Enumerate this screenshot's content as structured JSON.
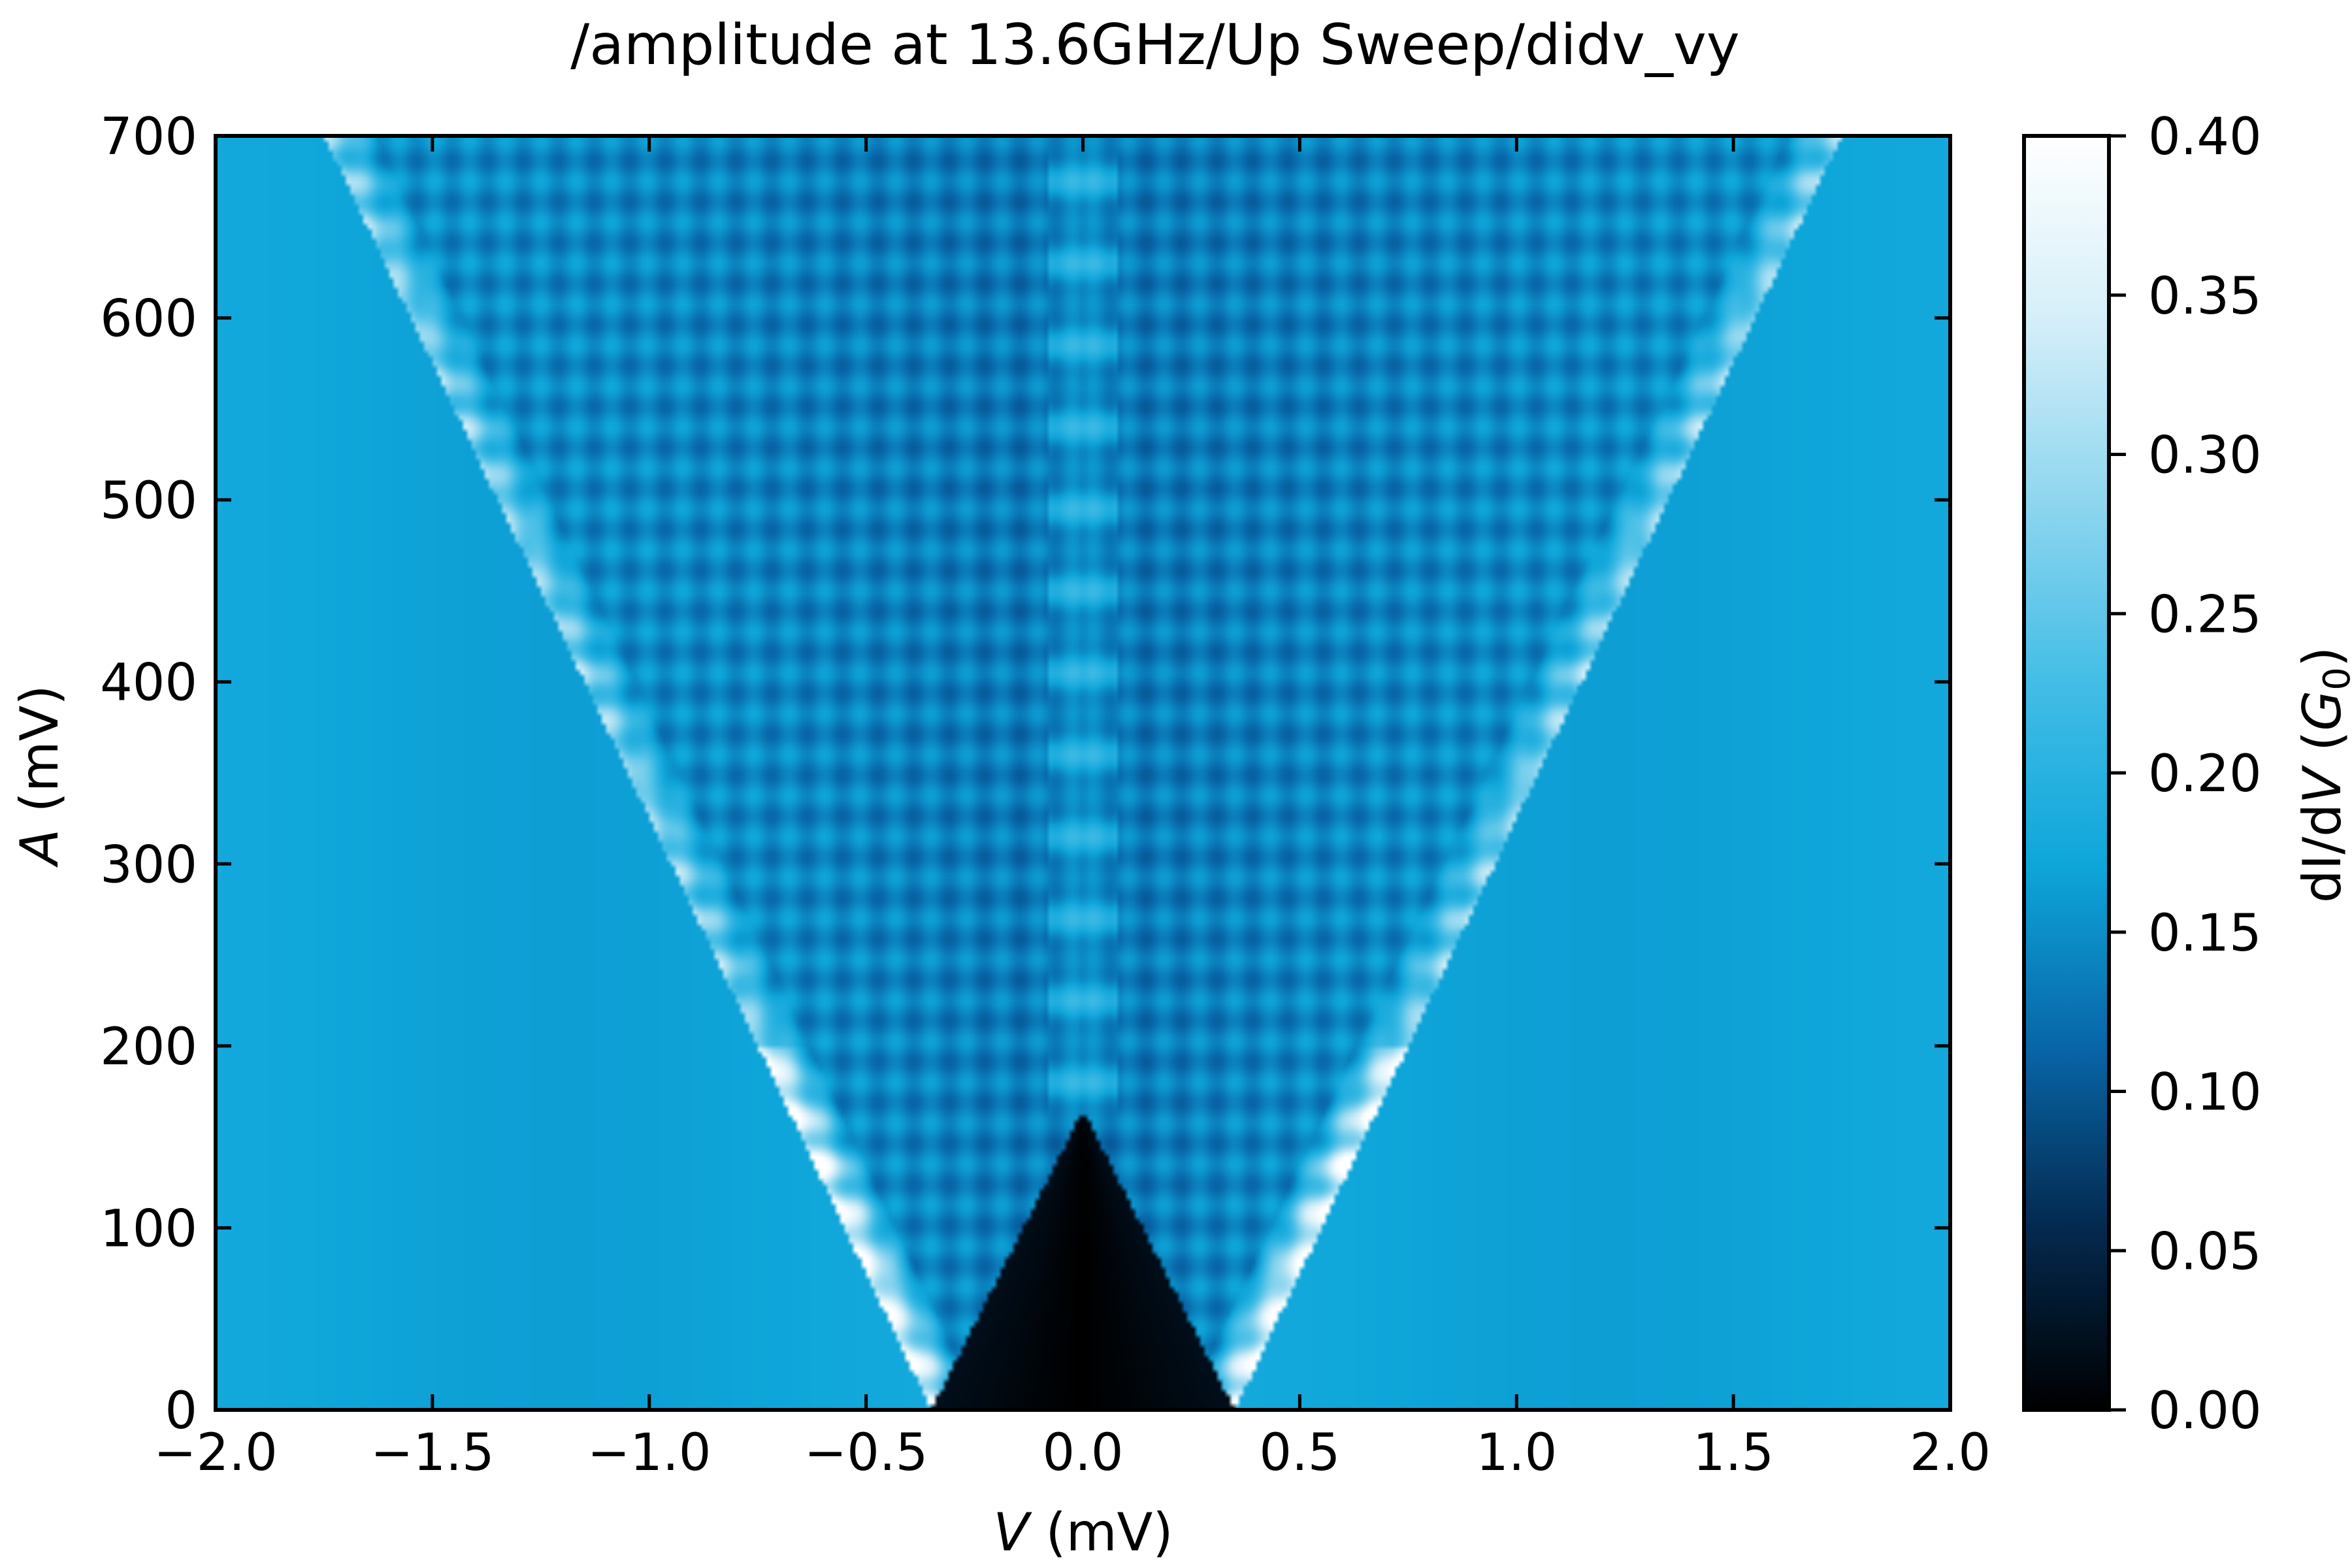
{
  "chart_data": {
    "type": "heatmap",
    "title": "/amplitude at 13.6GHz/Up Sweep/didv_vy",
    "xlabel": {
      "symbol": "V",
      "unit": " (mV)"
    },
    "ylabel": {
      "symbol": "A",
      "unit": " (mV)"
    },
    "xlim": [
      -2.0,
      2.0
    ],
    "ylim": [
      0,
      700
    ],
    "x_ticks": [
      -2.0,
      -1.5,
      -1.0,
      -0.5,
      0.0,
      0.5,
      1.0,
      1.5,
      2.0
    ],
    "x_tick_labels": [
      "−2.0",
      "−1.5",
      "−1.0",
      "−0.5",
      "0.0",
      "0.5",
      "1.0",
      "1.5",
      "2.0"
    ],
    "y_ticks": [
      0,
      100,
      200,
      300,
      400,
      500,
      600,
      700
    ],
    "y_tick_labels": [
      "0",
      "100",
      "200",
      "300",
      "400",
      "500",
      "600",
      "700"
    ],
    "colorbar": {
      "label": {
        "prefix": "dI/d",
        "symbol": "V",
        "unit_open": " (",
        "unit_symbol": "G",
        "unit_sub": "0",
        "unit_close": ")"
      },
      "range": [
        0.0,
        0.4
      ],
      "ticks": [
        0.0,
        0.05,
        0.1,
        0.15,
        0.2,
        0.25,
        0.3,
        0.35,
        0.4
      ],
      "tick_labels": [
        "0.00",
        "0.05",
        "0.10",
        "0.15",
        "0.20",
        "0.25",
        "0.30",
        "0.35",
        "0.40"
      ],
      "colormap": [
        "#000000",
        "#04294f",
        "#0866a8",
        "#0ea6da",
        "#43bde6",
        "#8fd6ef",
        "#d5eff9",
        "#ffffff"
      ]
    },
    "grid": false,
    "features": {
      "background_value": 0.185,
      "gap_edge_V": 0.35,
      "gap_value": 0.0,
      "outer_edge_slope_mV_per_mV": 0.002,
      "edge_peak_value": 0.4,
      "interior_value": 0.15,
      "oscillation_period_A_mV": 45
    }
  }
}
